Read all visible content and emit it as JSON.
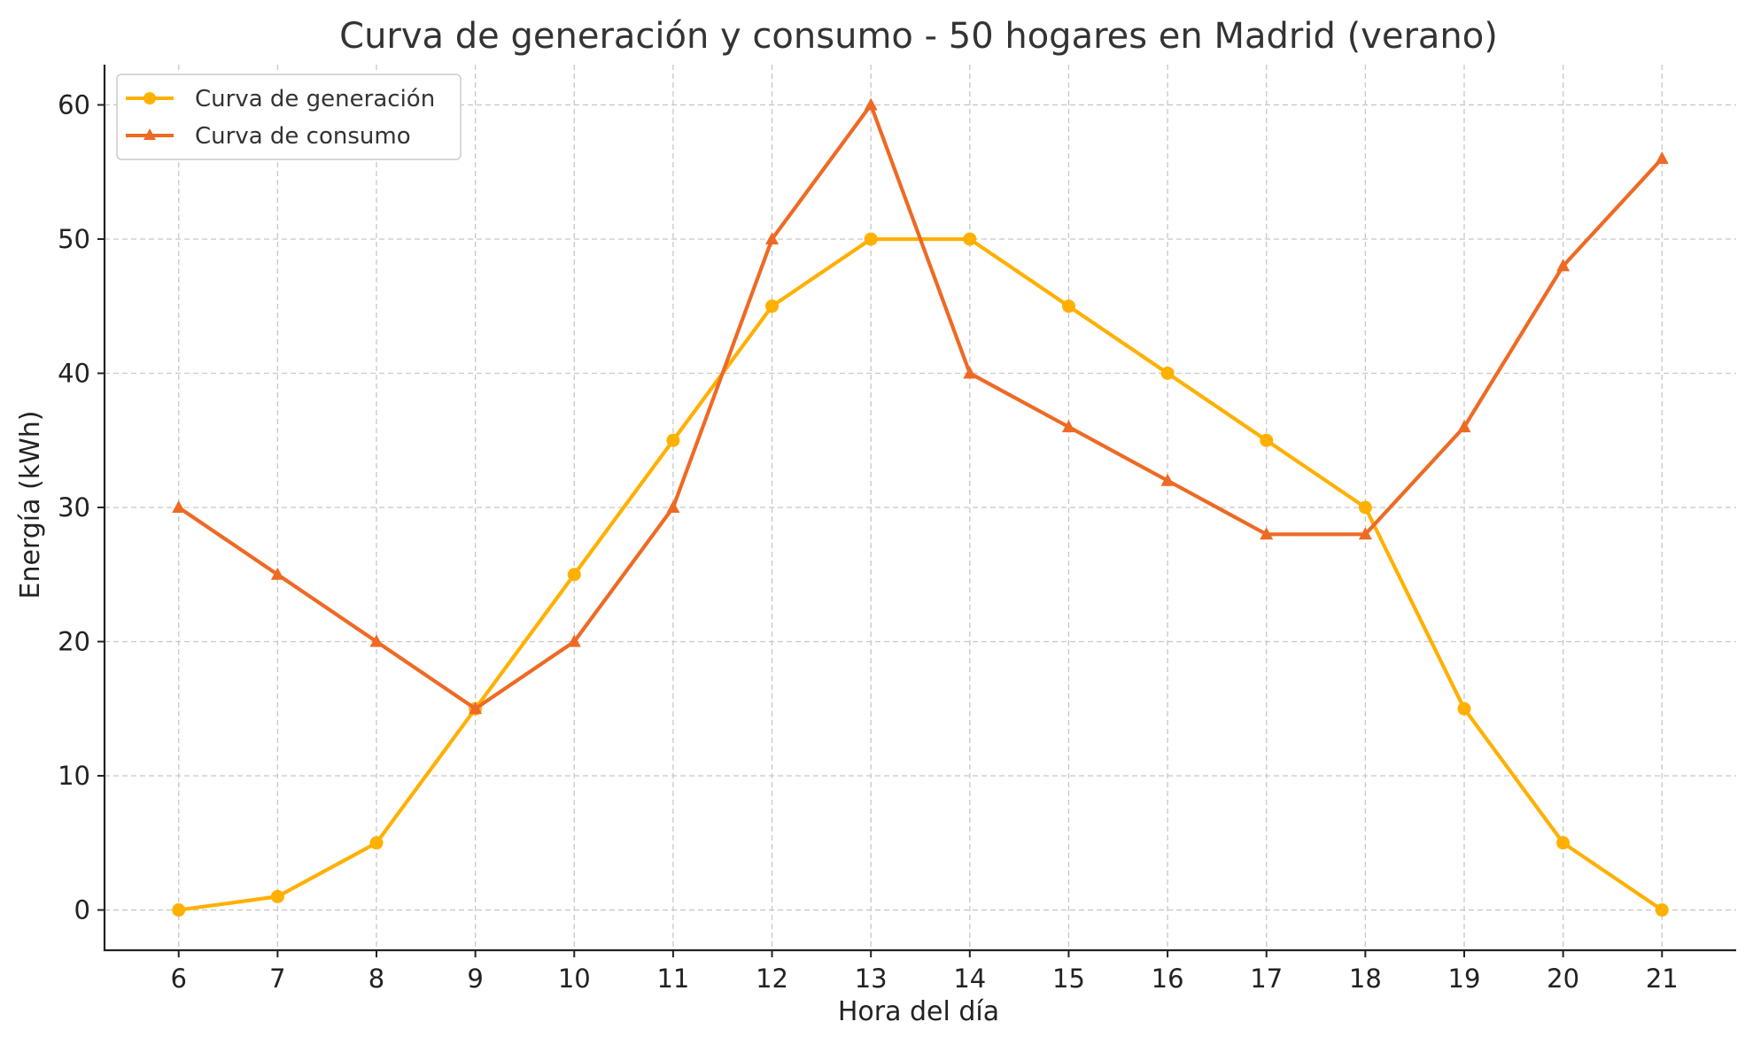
{
  "chart_data": {
    "type": "line",
    "title": "Curva de generación y consumo - 50 hogares en Madrid (verano)",
    "xlabel": "Hora del día",
    "ylabel": "Energía (kWh)",
    "x": [
      6,
      7,
      8,
      9,
      10,
      11,
      12,
      13,
      14,
      15,
      16,
      17,
      18,
      19,
      20,
      21
    ],
    "x_ticks": [
      "6",
      "7",
      "8",
      "9",
      "10",
      "11",
      "12",
      "13",
      "14",
      "15",
      "16",
      "17",
      "18",
      "19",
      "20",
      "21"
    ],
    "xlim": [
      5.25,
      21.75
    ],
    "ylim": [
      -3,
      63
    ],
    "y_ticks": [
      0,
      10,
      20,
      30,
      40,
      50,
      60
    ],
    "grid": true,
    "legend_position": "top-left",
    "series": [
      {
        "name": "Curva de generación",
        "color": "#FFB000",
        "marker": "circle",
        "values": [
          0,
          1,
          5,
          15,
          25,
          35,
          45,
          50,
          50,
          45,
          40,
          35,
          30,
          15,
          5,
          0
        ]
      },
      {
        "name": "Curva de consumo",
        "color": "#EE6A24",
        "marker": "triangle",
        "values": [
          30,
          25,
          20,
          15,
          20,
          30,
          50,
          60,
          40,
          36,
          32,
          28,
          28,
          36,
          48,
          56
        ]
      }
    ]
  }
}
